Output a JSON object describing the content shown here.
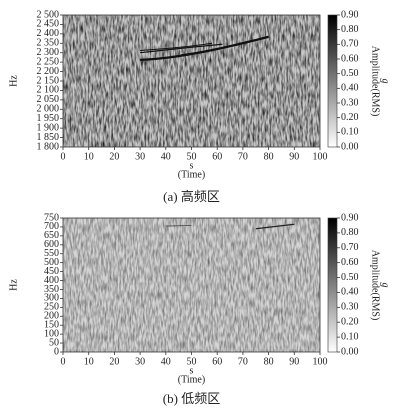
{
  "chart_data": [
    {
      "type": "spectrogram",
      "ylabel": "Hz",
      "xlabel": "s",
      "xlabel_sub": "(Time)",
      "caption": "(a) 高频区",
      "colorbar_label": "Amplitude(RMS)",
      "colorbar_unit": "g",
      "xlim": [
        0,
        100
      ],
      "xticks": [
        0,
        10,
        20,
        30,
        40,
        50,
        60,
        70,
        80,
        90,
        100
      ],
      "ylim": [
        1800,
        2500
      ],
      "yticks": [
        {
          "value": 1800,
          "label": "1 800"
        },
        {
          "value": 1850,
          "label": "1 850"
        },
        {
          "value": 1900,
          "label": "1 900"
        },
        {
          "value": 1950,
          "label": "1 950"
        },
        {
          "value": 2000,
          "label": "2 000"
        },
        {
          "value": 2050,
          "label": "2 050"
        },
        {
          "value": 2100,
          "label": "2 100"
        },
        {
          "value": 2150,
          "label": "2 150"
        },
        {
          "value": 2200,
          "label": "2 200"
        },
        {
          "value": 2250,
          "label": "2 250"
        },
        {
          "value": 2300,
          "label": "2 300"
        },
        {
          "value": 2350,
          "label": "2 350"
        },
        {
          "value": 2400,
          "label": "2 400"
        },
        {
          "value": 2450,
          "label": "2 450"
        },
        {
          "value": 2500,
          "label": "2 500"
        }
      ],
      "clim": [
        0,
        0.9
      ],
      "cticks": [
        {
          "value": 0,
          "label": "0.00"
        },
        {
          "value": 0.1,
          "label": "0.10"
        },
        {
          "value": 0.2,
          "label": "0.20"
        },
        {
          "value": 0.3,
          "label": "0.30"
        },
        {
          "value": 0.4,
          "label": "0.40"
        },
        {
          "value": 0.5,
          "label": "0.50"
        },
        {
          "value": 0.6,
          "label": "0.60"
        },
        {
          "value": 0.7,
          "label": "0.70"
        },
        {
          "value": 0.8,
          "label": "0.80"
        },
        {
          "value": 0.9,
          "label": "0.90"
        }
      ]
    },
    {
      "type": "spectrogram",
      "ylabel": "Hz",
      "xlabel": "s",
      "xlabel_sub": "(Time)",
      "caption": "(b) 低频区",
      "colorbar_label": "Amplitude(RMS)",
      "colorbar_unit": "g",
      "xlim": [
        0,
        100
      ],
      "xticks": [
        0,
        10,
        20,
        30,
        40,
        50,
        60,
        70,
        80,
        90,
        100
      ],
      "ylim": [
        0,
        750
      ],
      "yticks": [
        0,
        50,
        100,
        150,
        200,
        250,
        300,
        350,
        400,
        450,
        500,
        550,
        600,
        650,
        700,
        750
      ],
      "clim": [
        0,
        0.9
      ],
      "cticks": [
        {
          "value": 0,
          "label": "0.00"
        },
        {
          "value": 0.1,
          "label": "0.10"
        },
        {
          "value": 0.2,
          "label": "0.20"
        },
        {
          "value": 0.3,
          "label": "0.30"
        },
        {
          "value": 0.4,
          "label": "0.40"
        },
        {
          "value": 0.5,
          "label": "0.50"
        },
        {
          "value": 0.6,
          "label": "0.60"
        },
        {
          "value": 0.7,
          "label": "0.70"
        },
        {
          "value": 0.8,
          "label": "0.80"
        },
        {
          "value": 0.9,
          "label": "0.90"
        }
      ]
    }
  ]
}
